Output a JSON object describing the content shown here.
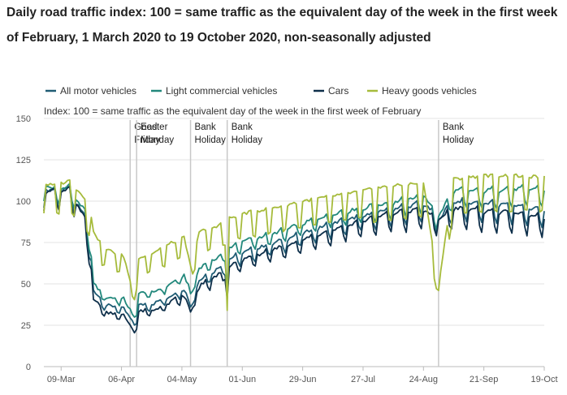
{
  "chart_data": {
    "type": "line",
    "title": "Daily road traffic index: 100 = same traffic as the equivalent day of the week in the first week of February, 1 March 2020 to 19 October 2020, non-seasonally adjusted",
    "subtitle": "Index: 100 = same traffic as the equivalent day of the week in the first week of February",
    "xlabel": "",
    "ylabel": "",
    "ylim": [
      0,
      150
    ],
    "yticks": [
      0,
      25,
      50,
      75,
      100,
      125,
      150
    ],
    "x_range": [
      "2020-03-01",
      "2020-10-19"
    ],
    "xticks": [
      {
        "date": "2020-03-09",
        "label": "09-Mar"
      },
      {
        "date": "2020-04-06",
        "label": "06-Apr"
      },
      {
        "date": "2020-05-04",
        "label": "04-May"
      },
      {
        "date": "2020-06-01",
        "label": "01-Jun"
      },
      {
        "date": "2020-06-29",
        "label": "29-Jun"
      },
      {
        "date": "2020-07-27",
        "label": "27-Jul"
      },
      {
        "date": "2020-08-24",
        "label": "24-Aug"
      },
      {
        "date": "2020-09-21",
        "label": "21-Sep"
      },
      {
        "date": "2020-10-19",
        "label": "19-Oct"
      }
    ],
    "grid": true,
    "legend_position": "top",
    "annotations": [
      {
        "date": "2020-04-10",
        "lines": [
          "Good",
          "Friday"
        ]
      },
      {
        "date": "2020-04-13",
        "lines": [
          "Easter",
          "Monday"
        ]
      },
      {
        "date": "2020-05-08",
        "lines": [
          "Bank",
          "Holiday"
        ]
      },
      {
        "date": "2020-05-25",
        "lines": [
          "Bank",
          "Holiday"
        ]
      },
      {
        "date": "2020-08-31",
        "lines": [
          "Bank",
          "Holiday"
        ]
      }
    ],
    "series": [
      {
        "name": "All motor vehicles",
        "color": "#1f5c74",
        "anchors": [
          [
            "2020-03-01",
            104
          ],
          [
            "2020-03-06",
            103
          ],
          [
            "2020-03-13",
            104
          ],
          [
            "2020-03-16",
            96
          ],
          [
            "2020-03-20",
            88
          ],
          [
            "2020-03-23",
            62
          ],
          [
            "2020-03-24",
            45
          ],
          [
            "2020-03-27",
            40
          ],
          [
            "2020-03-30",
            36
          ],
          [
            "2020-04-03",
            35
          ],
          [
            "2020-04-07",
            34
          ],
          [
            "2020-04-10",
            28
          ],
          [
            "2020-04-11",
            28
          ],
          [
            "2020-04-13",
            26
          ],
          [
            "2020-04-14",
            36
          ],
          [
            "2020-04-21",
            37
          ],
          [
            "2020-04-28",
            41
          ],
          [
            "2020-05-05",
            46
          ],
          [
            "2020-05-08",
            36
          ],
          [
            "2020-05-12",
            51
          ],
          [
            "2020-05-19",
            56
          ],
          [
            "2020-05-24",
            60
          ],
          [
            "2020-05-25",
            42
          ],
          [
            "2020-05-26",
            63
          ],
          [
            "2020-06-02",
            67
          ],
          [
            "2020-06-15",
            72
          ],
          [
            "2020-06-29",
            78
          ],
          [
            "2020-07-13",
            84
          ],
          [
            "2020-07-27",
            88
          ],
          [
            "2020-08-10",
            92
          ],
          [
            "2020-08-24",
            95
          ],
          [
            "2020-08-31",
            86
          ],
          [
            "2020-09-07",
            96
          ],
          [
            "2020-09-21",
            95
          ],
          [
            "2020-10-05",
            94
          ],
          [
            "2020-10-19",
            91
          ]
        ]
      },
      {
        "name": "Light commercial vehicles",
        "color": "#22887c",
        "anchors": [
          [
            "2020-03-01",
            107
          ],
          [
            "2020-03-06",
            104
          ],
          [
            "2020-03-13",
            106
          ],
          [
            "2020-03-16",
            99
          ],
          [
            "2020-03-20",
            91
          ],
          [
            "2020-03-23",
            66
          ],
          [
            "2020-03-24",
            49
          ],
          [
            "2020-03-27",
            44
          ],
          [
            "2020-03-30",
            41
          ],
          [
            "2020-04-03",
            40
          ],
          [
            "2020-04-07",
            40
          ],
          [
            "2020-04-10",
            33
          ],
          [
            "2020-04-11",
            32
          ],
          [
            "2020-04-13",
            31
          ],
          [
            "2020-04-14",
            43
          ],
          [
            "2020-04-21",
            44
          ],
          [
            "2020-04-28",
            48
          ],
          [
            "2020-05-05",
            54
          ],
          [
            "2020-05-08",
            44
          ],
          [
            "2020-05-12",
            58
          ],
          [
            "2020-05-19",
            63
          ],
          [
            "2020-05-24",
            67
          ],
          [
            "2020-05-25",
            48
          ],
          [
            "2020-05-26",
            70
          ],
          [
            "2020-06-02",
            74
          ],
          [
            "2020-06-15",
            78
          ],
          [
            "2020-06-29",
            84
          ],
          [
            "2020-07-13",
            90
          ],
          [
            "2020-07-27",
            93
          ],
          [
            "2020-08-10",
            96
          ],
          [
            "2020-08-24",
            100
          ],
          [
            "2020-08-31",
            88
          ],
          [
            "2020-09-07",
            103
          ],
          [
            "2020-09-21",
            103
          ],
          [
            "2020-10-05",
            104
          ],
          [
            "2020-10-19",
            104
          ]
        ]
      },
      {
        "name": "Cars",
        "color": "#0e2f4a",
        "anchors": [
          [
            "2020-03-01",
            103
          ],
          [
            "2020-03-06",
            102
          ],
          [
            "2020-03-13",
            103
          ],
          [
            "2020-03-16",
            95
          ],
          [
            "2020-03-20",
            86
          ],
          [
            "2020-03-23",
            58
          ],
          [
            "2020-03-24",
            40
          ],
          [
            "2020-03-27",
            35
          ],
          [
            "2020-03-30",
            32
          ],
          [
            "2020-04-03",
            31
          ],
          [
            "2020-04-07",
            30
          ],
          [
            "2020-04-10",
            24
          ],
          [
            "2020-04-11",
            24
          ],
          [
            "2020-04-13",
            22
          ],
          [
            "2020-04-14",
            32
          ],
          [
            "2020-04-21",
            33
          ],
          [
            "2020-04-28",
            37
          ],
          [
            "2020-05-05",
            42
          ],
          [
            "2020-05-08",
            33
          ],
          [
            "2020-05-12",
            47
          ],
          [
            "2020-05-19",
            52
          ],
          [
            "2020-05-24",
            56
          ],
          [
            "2020-05-25",
            41
          ],
          [
            "2020-05-26",
            58
          ],
          [
            "2020-06-02",
            63
          ],
          [
            "2020-06-15",
            68
          ],
          [
            "2020-06-29",
            74
          ],
          [
            "2020-07-13",
            80
          ],
          [
            "2020-07-27",
            85
          ],
          [
            "2020-08-10",
            89
          ],
          [
            "2020-08-24",
            91
          ],
          [
            "2020-08-31",
            85
          ],
          [
            "2020-09-07",
            92
          ],
          [
            "2020-09-21",
            90
          ],
          [
            "2020-10-05",
            89
          ],
          [
            "2020-10-19",
            86
          ]
        ]
      },
      {
        "name": "Heavy goods vehicles",
        "color": "#a6bb3b",
        "anchors": [
          [
            "2020-03-01",
            106
          ],
          [
            "2020-03-06",
            105
          ],
          [
            "2020-03-13",
            108
          ],
          [
            "2020-03-16",
            103
          ],
          [
            "2020-03-20",
            98
          ],
          [
            "2020-03-23",
            86
          ],
          [
            "2020-03-24",
            79
          ],
          [
            "2020-03-27",
            72
          ],
          [
            "2020-03-30",
            68
          ],
          [
            "2020-04-03",
            66
          ],
          [
            "2020-04-07",
            64
          ],
          [
            "2020-04-10",
            50
          ],
          [
            "2020-04-11",
            48
          ],
          [
            "2020-04-13",
            46
          ],
          [
            "2020-04-14",
            63
          ],
          [
            "2020-04-21",
            66
          ],
          [
            "2020-04-28",
            71
          ],
          [
            "2020-05-05",
            75
          ],
          [
            "2020-05-08",
            58
          ],
          [
            "2020-05-12",
            78
          ],
          [
            "2020-05-19",
            81
          ],
          [
            "2020-05-24",
            84
          ],
          [
            "2020-05-25",
            34
          ],
          [
            "2020-05-26",
            86
          ],
          [
            "2020-06-02",
            89
          ],
          [
            "2020-06-15",
            92
          ],
          [
            "2020-06-29",
            96
          ],
          [
            "2020-07-13",
            99
          ],
          [
            "2020-07-27",
            102
          ],
          [
            "2020-08-10",
            104
          ],
          [
            "2020-08-24",
            106
          ],
          [
            "2020-08-31",
            46
          ],
          [
            "2020-09-07",
            108
          ],
          [
            "2020-09-21",
            110
          ],
          [
            "2020-10-05",
            110
          ],
          [
            "2020-10-19",
            109
          ]
        ]
      }
    ]
  }
}
